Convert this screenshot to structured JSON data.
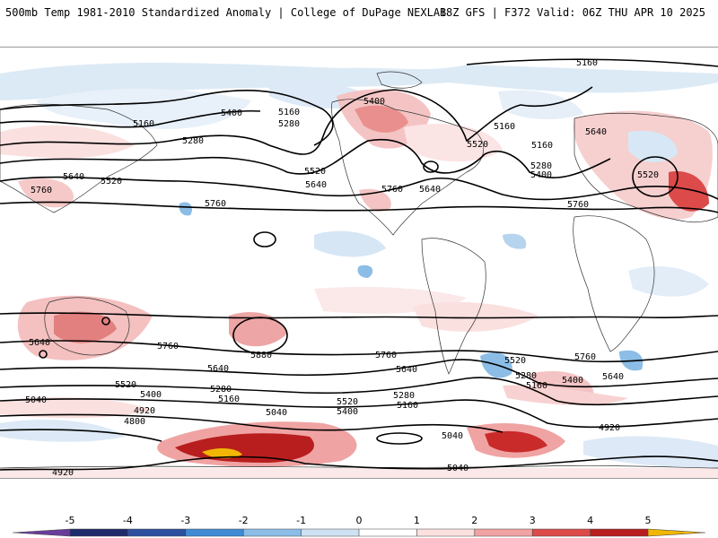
{
  "header": {
    "title": "500mb Temp 1981-2010 Standardized Anomaly | College of DuPage NEXLAB",
    "run_info": "18Z GFS | F372 Valid: 06Z THU APR 10 2025"
  },
  "map": {
    "background": "#ffffff",
    "land_outline": "#222222",
    "contour_color": "#000000",
    "contour_labels": [
      {
        "text": "5160"
      },
      {
        "text": "5160"
      },
      {
        "text": "5400"
      },
      {
        "text": "5160"
      },
      {
        "text": "5280"
      },
      {
        "text": "5280"
      },
      {
        "text": "5400"
      },
      {
        "text": "5520"
      },
      {
        "text": "5520"
      },
      {
        "text": "5640"
      },
      {
        "text": "5520"
      },
      {
        "text": "5640"
      },
      {
        "text": "5760"
      },
      {
        "text": "5760"
      },
      {
        "text": "5760"
      },
      {
        "text": "5640"
      },
      {
        "text": "5160"
      },
      {
        "text": "5160"
      },
      {
        "text": "5280"
      },
      {
        "text": "5400"
      },
      {
        "text": "5640"
      },
      {
        "text": "5520"
      },
      {
        "text": "5760"
      },
      {
        "text": "5640"
      },
      {
        "text": "5760"
      },
      {
        "text": "5880"
      },
      {
        "text": "5640"
      },
      {
        "text": "5520"
      },
      {
        "text": "5400"
      },
      {
        "text": "5280"
      },
      {
        "text": "5160"
      },
      {
        "text": "5040"
      },
      {
        "text": "5040"
      },
      {
        "text": "4920"
      },
      {
        "text": "4800"
      },
      {
        "text": "4920"
      },
      {
        "text": "5760"
      },
      {
        "text": "5640"
      },
      {
        "text": "5520"
      },
      {
        "text": "5400"
      },
      {
        "text": "5280"
      },
      {
        "text": "5160"
      },
      {
        "text": "5520"
      },
      {
        "text": "5280"
      },
      {
        "text": "5160"
      },
      {
        "text": "5400"
      },
      {
        "text": "5760"
      },
      {
        "text": "5640"
      },
      {
        "text": "5040"
      },
      {
        "text": "5040"
      },
      {
        "text": "4920"
      }
    ]
  },
  "colorbar": {
    "ticks": [
      "-5",
      "-4",
      "-3",
      "-2",
      "-1",
      "0",
      "1",
      "2",
      "3",
      "4",
      "5"
    ],
    "colors": [
      "#1f2a6b",
      "#2c4f9e",
      "#3e8bd4",
      "#8cbde6",
      "#cfe2f3",
      "#ffffff",
      "#fbe0e0",
      "#f0a3a3",
      "#dc4a4a",
      "#b81e1e",
      "#7a0606"
    ],
    "low_end_color": "#6a3d9a",
    "high_end_color": "#f2b705"
  }
}
